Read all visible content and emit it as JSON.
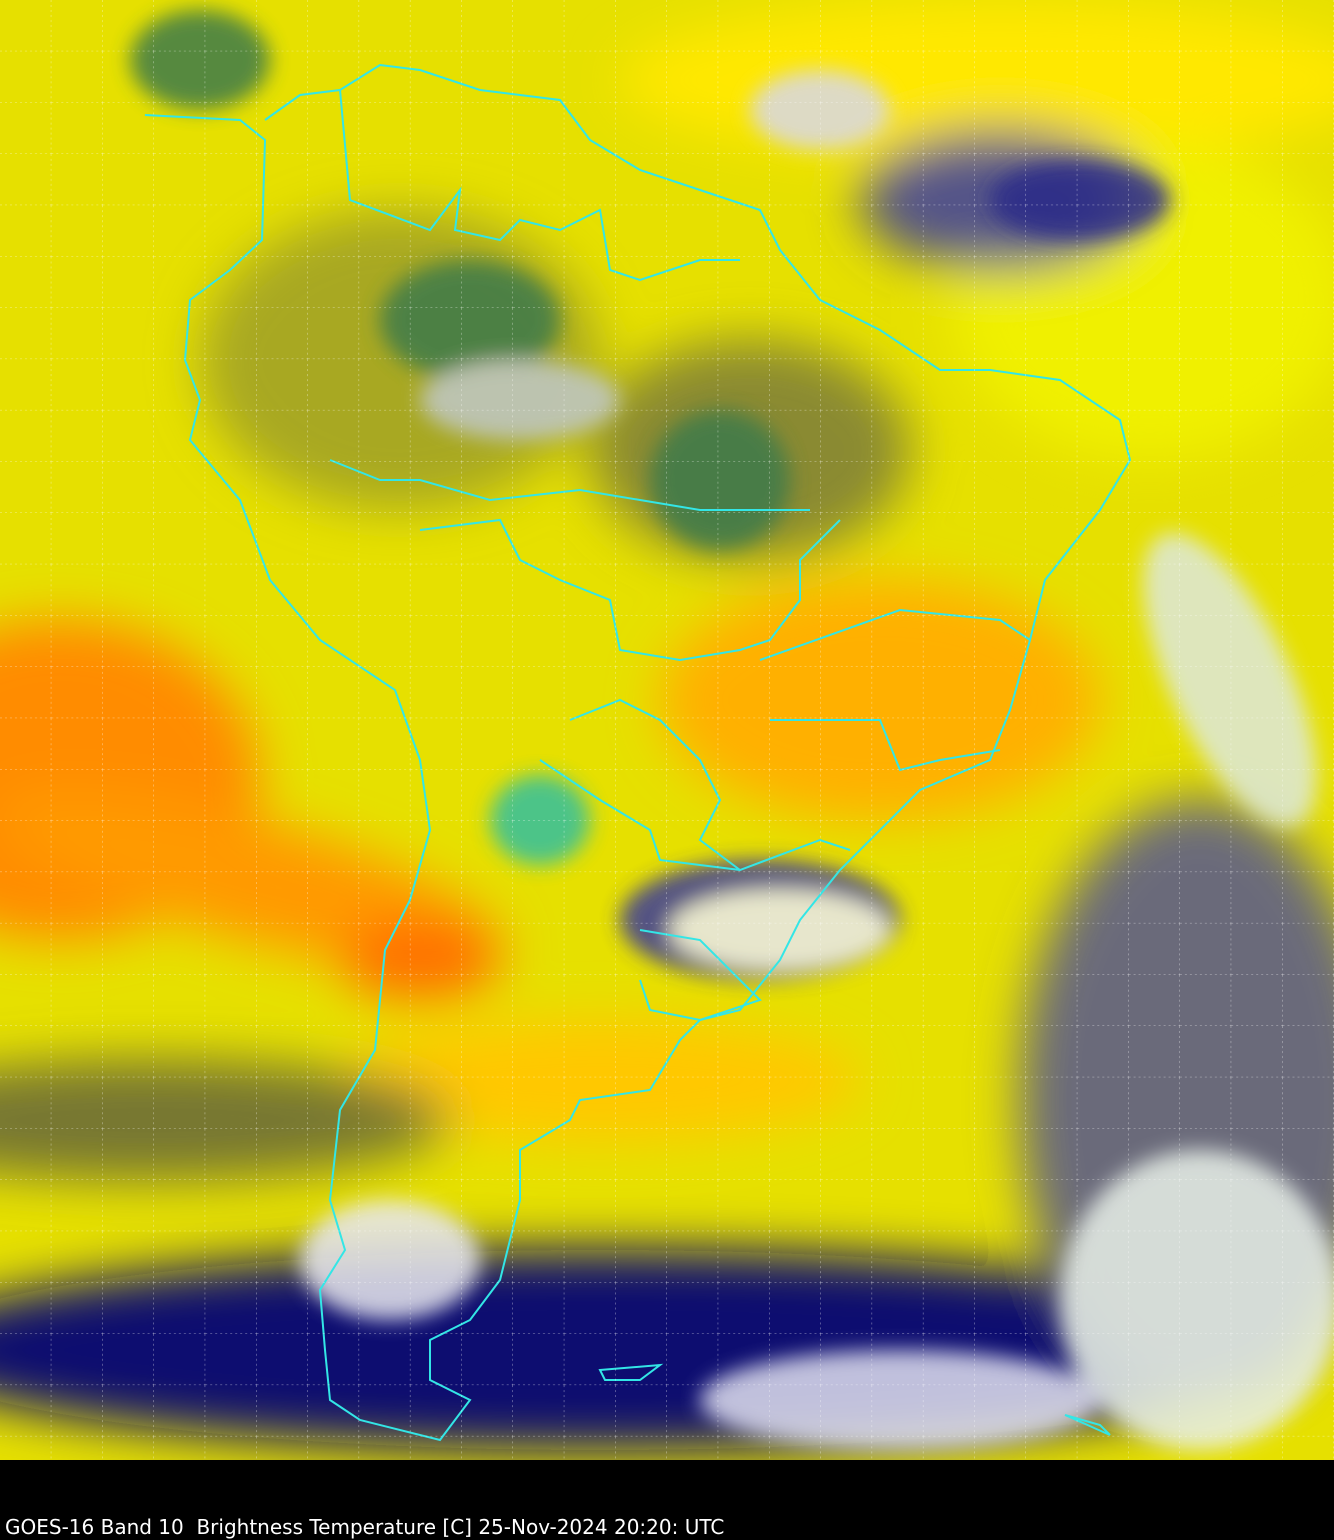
{
  "caption": "GOES-16 Band 10  Brightness Temperature [C] 25-Nov-2024 20:20: UTC",
  "map": {
    "satellite": "GOES-16",
    "band": "Band 10",
    "quantity": "Brightness Temperature [C]",
    "region": "South America",
    "colormap": [
      "#000066",
      "#3a3a9a",
      "#ffffff",
      "#3c7a3c",
      "#30c0a0",
      "#6b6b2a",
      "#d8d800",
      "#ffff00",
      "#ffc000",
      "#ff6000"
    ],
    "overlay_colors": {
      "borders": "#33e6e6",
      "grid": "#ffffff"
    },
    "grid": true
  }
}
